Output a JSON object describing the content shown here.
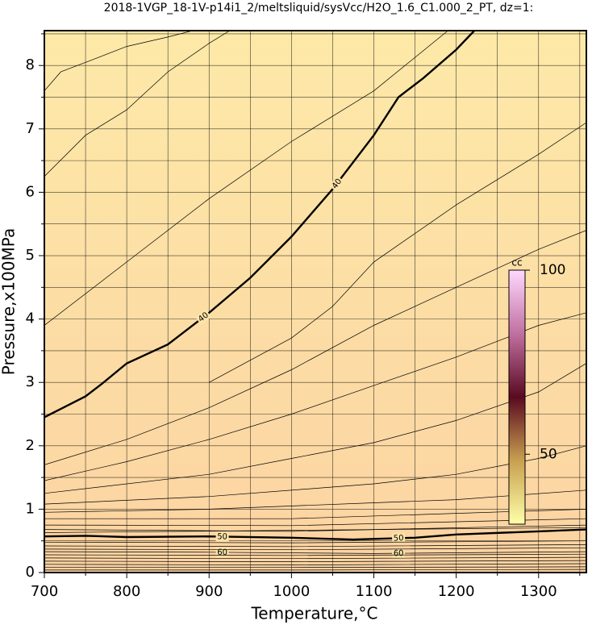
{
  "chart_data": {
    "type": "contour",
    "title": "2018-1VGP_18-1V-p14i1_2/meltsliquid/sysVcc/H2O_1.6_C1.000_2_PT, dz=1:",
    "xlabel": "Temperature,°C",
    "ylabel": "Pressure,x100MPa",
    "xlim": [
      700,
      1358
    ],
    "ylim": [
      0,
      8.55
    ],
    "xticks": [
      700,
      800,
      900,
      1000,
      1100,
      1200,
      1300
    ],
    "yticks": [
      0,
      1,
      2,
      3,
      4,
      5,
      6,
      7,
      8
    ],
    "x_minor_ticks": [
      750,
      850,
      950,
      1050,
      1150,
      1250,
      1350
    ],
    "y_minor_ticks": [
      0.5,
      1.5,
      2.5,
      3.5,
      4.5,
      5.5,
      6.5,
      7.5,
      8.5
    ],
    "grid": true,
    "background_colors": [
      "#fde9a8",
      "#fcd3a2"
    ],
    "contours": [
      {
        "label": "40",
        "bold": true,
        "label_x": [
          893,
          1055
        ],
        "x": [
          700,
          750,
          770,
          800,
          850,
          900,
          950,
          1000,
          1050,
          1100,
          1130,
          1160,
          1200,
          1222
        ],
        "y": [
          2.45,
          2.78,
          2.98,
          3.3,
          3.6,
          4.1,
          4.65,
          5.3,
          6.05,
          6.9,
          7.5,
          7.8,
          8.25,
          8.55
        ]
      },
      {
        "label": "50",
        "bold": true,
        "label_x": [
          916,
          1130
        ],
        "x": [
          700,
          750,
          800,
          900,
          1000,
          1075,
          1150,
          1200,
          1300,
          1358
        ],
        "y": [
          0.57,
          0.58,
          0.56,
          0.57,
          0.55,
          0.52,
          0.55,
          0.6,
          0.65,
          0.68
        ]
      },
      {
        "label": "60",
        "bold": false,
        "label_x": [
          916,
          1130
        ],
        "x": [
          700,
          900,
          1100,
          1358
        ],
        "y": [
          0.33,
          0.32,
          0.3,
          0.33
        ]
      },
      {
        "x": [
          700,
          720,
          760,
          800,
          850,
          880
        ],
        "y": [
          7.6,
          7.9,
          8.1,
          8.3,
          8.45,
          8.55
        ]
      },
      {
        "x": [
          700,
          750,
          800,
          850,
          900,
          925
        ],
        "y": [
          6.25,
          6.9,
          7.3,
          7.9,
          8.35,
          8.55
        ]
      },
      {
        "x": [
          700,
          800,
          900,
          1000,
          1100,
          1190
        ],
        "y": [
          3.9,
          4.9,
          5.9,
          6.8,
          7.6,
          8.55
        ]
      },
      {
        "x": [
          900,
          1000,
          1050,
          1100,
          1200,
          1300,
          1358
        ],
        "y": [
          3.0,
          3.7,
          4.2,
          4.9,
          5.8,
          6.6,
          7.1
        ]
      },
      {
        "x": [
          700,
          800,
          900,
          1000,
          1100,
          1200,
          1300,
          1358
        ],
        "y": [
          1.7,
          2.1,
          2.6,
          3.2,
          3.9,
          4.5,
          5.1,
          5.4
        ]
      },
      {
        "x": [
          700,
          800,
          900,
          1000,
          1100,
          1200,
          1300,
          1358
        ],
        "y": [
          1.45,
          1.75,
          2.1,
          2.5,
          2.95,
          3.4,
          3.9,
          4.1
        ]
      },
      {
        "x": [
          700,
          900,
          1000,
          1100,
          1200,
          1300,
          1358
        ],
        "y": [
          1.25,
          1.55,
          1.8,
          2.05,
          2.4,
          2.85,
          3.3
        ]
      },
      {
        "x": [
          700,
          900,
          1100,
          1200,
          1300,
          1358
        ],
        "y": [
          1.08,
          1.2,
          1.4,
          1.55,
          1.8,
          2.0
        ]
      },
      {
        "x": [
          700,
          900,
          1100,
          1200,
          1358
        ],
        "y": [
          0.95,
          1.0,
          1.1,
          1.15,
          1.3
        ]
      },
      {
        "x": [
          700,
          1000,
          1358
        ],
        "y": [
          0.85,
          0.85,
          1.0
        ]
      },
      {
        "x": [
          700,
          1000,
          1358
        ],
        "y": [
          0.75,
          0.74,
          0.85
        ]
      },
      {
        "x": [
          700,
          1000,
          1358
        ],
        "y": [
          0.68,
          0.65,
          0.75
        ]
      },
      {
        "x": [
          700,
          1358
        ],
        "y": [
          0.63,
          0.71
        ]
      },
      {
        "x": [
          700,
          1000,
          1358
        ],
        "y": [
          0.48,
          0.47,
          0.5
        ]
      },
      {
        "x": [
          700,
          1000,
          1358
        ],
        "y": [
          0.42,
          0.41,
          0.44
        ]
      },
      {
        "x": [
          700,
          1000,
          1358
        ],
        "y": [
          0.37,
          0.36,
          0.39
        ]
      },
      {
        "x": [
          700,
          1000,
          1358
        ],
        "y": [
          0.28,
          0.27,
          0.29
        ]
      },
      {
        "x": [
          700,
          1000,
          1358
        ],
        "y": [
          0.23,
          0.22,
          0.24
        ]
      },
      {
        "x": [
          700,
          1000,
          1358
        ],
        "y": [
          0.18,
          0.17,
          0.19
        ]
      },
      {
        "x": [
          700,
          1000,
          1358
        ],
        "y": [
          0.13,
          0.12,
          0.14
        ]
      },
      {
        "x": [
          700,
          1000,
          1358
        ],
        "y": [
          0.08,
          0.08,
          0.09
        ]
      },
      {
        "x": [
          700,
          1000,
          1358
        ],
        "y": [
          0.04,
          0.04,
          0.05
        ]
      }
    ],
    "colorbar": {
      "label": "cc",
      "clim": [
        31,
        100
      ],
      "ticks": [
        50,
        100
      ],
      "colors": [
        "#ffffa8",
        "#c8a050",
        "#5a0a20",
        "#c070a0",
        "#ffd8ff"
      ]
    }
  }
}
